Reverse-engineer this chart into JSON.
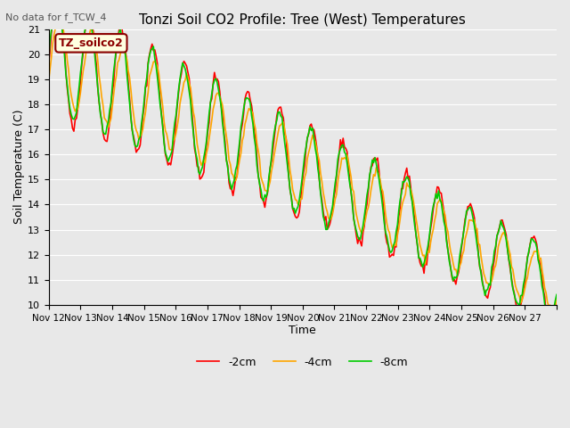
{
  "title": "Tonzi Soil CO2 Profile: Tree (West) Temperatures",
  "subtitle": "No data for f_TCW_4",
  "xlabel": "Time",
  "ylabel": "Soil Temperature (C)",
  "ylim": [
    10.0,
    21.0
  ],
  "yticks": [
    10.0,
    11.0,
    12.0,
    13.0,
    14.0,
    15.0,
    16.0,
    17.0,
    18.0,
    19.0,
    20.0,
    21.0
  ],
  "xtick_labels": [
    "Nov 12",
    "Nov 13",
    "Nov 14",
    "Nov 15",
    "Nov 16",
    "Nov 17",
    "Nov 18",
    "Nov 19",
    "Nov 20",
    "Nov 21",
    "Nov 22",
    "Nov 23",
    "Nov 24",
    "Nov 25",
    "Nov 26",
    "Nov 27"
  ],
  "legend_label": "TZ_soilco2",
  "series_labels": [
    "-2cm",
    "-4cm",
    "-8cm"
  ],
  "series_colors": [
    "#ff0000",
    "#ffa500",
    "#00cc00"
  ],
  "line_width": 1.2,
  "bg_color": "#e8e8e8",
  "grid_color": "#ffffff",
  "n_points": 384
}
